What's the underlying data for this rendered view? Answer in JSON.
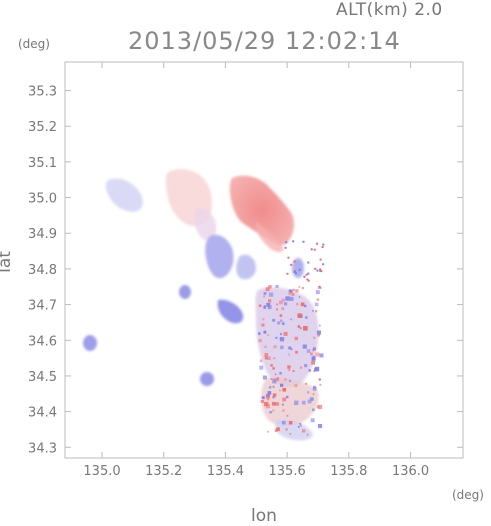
{
  "header": {
    "altitude_label": "ALT(km) 2.0",
    "datetime": "2013/05/29 12:02:14"
  },
  "axes": {
    "y_unit": "(deg)",
    "x_unit": "(deg)",
    "xlabel": "lon",
    "ylabel": "lat"
  },
  "colors": {
    "positive": "#f07070",
    "positive_light": "#f8c0c0",
    "negative": "#8080e8",
    "negative_light": "#c8c8f4",
    "frame": "#bbbbbb"
  },
  "chart_data": {
    "type": "heatmap",
    "title": "",
    "xlim": [
      134.88,
      136.17
    ],
    "ylim": [
      34.27,
      35.38
    ],
    "x_ticks": [
      "135.0",
      "135.2",
      "135.4",
      "135.6",
      "135.8",
      "136.0"
    ],
    "y_ticks": [
      "34.3",
      "34.4",
      "34.5",
      "34.6",
      "34.7",
      "34.8",
      "34.9",
      "35.0",
      "35.1",
      "35.2",
      "35.3"
    ],
    "grid": false,
    "regions": [
      {
        "name": "NE red echo",
        "lon": 135.48,
        "lat": 34.97,
        "sign": "positive",
        "level": 0.8
      },
      {
        "name": "NE red tail",
        "lon": 135.56,
        "lat": 34.9,
        "sign": "positive",
        "level": 0.6
      },
      {
        "name": "north pale",
        "lon": 135.32,
        "lat": 34.97,
        "sign": "positive",
        "level": 0.25
      },
      {
        "name": "NW blue",
        "lon": 135.07,
        "lat": 35.0,
        "sign": "negative",
        "level": 0.35
      },
      {
        "name": "mid blue",
        "lon": 135.38,
        "lat": 34.82,
        "sign": "negative",
        "level": 0.6
      },
      {
        "name": "W blue",
        "lon": 134.95,
        "lat": 34.6,
        "sign": "negative",
        "level": 0.6
      },
      {
        "name": "small blue A",
        "lon": 135.26,
        "lat": 34.74,
        "sign": "negative",
        "level": 0.55
      },
      {
        "name": "small blue B",
        "lon": 135.36,
        "lat": 34.67,
        "sign": "negative",
        "level": 0.6
      },
      {
        "name": "small blue C",
        "lon": 135.33,
        "lat": 34.5,
        "sign": "negative",
        "level": 0.6
      },
      {
        "name": "S cluster",
        "lon": 135.6,
        "lat": 34.55,
        "sign": "mixed",
        "level": 0.7
      }
    ]
  }
}
